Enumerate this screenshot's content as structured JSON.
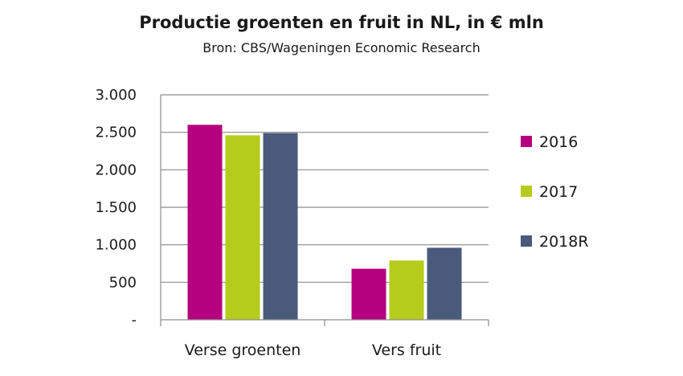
{
  "chart_data": {
    "type": "bar",
    "title": "Productie groenten en fruit in NL, in € mln",
    "subtitle": "Bron: CBS/Wageningen Economic Research",
    "categories": [
      "Verse groenten",
      "Vers fruit"
    ],
    "series": [
      {
        "name": "2016",
        "color": "#b5007f",
        "values": [
          2600,
          680
        ]
      },
      {
        "name": "2017",
        "color": "#b5cc1c",
        "values": [
          2460,
          790
        ]
      },
      {
        "name": "2018R",
        "color": "#4a5a7a",
        "values": [
          2490,
          960
        ]
      }
    ],
    "yticks": [
      "-",
      "500",
      "1.000",
      "1.500",
      "2.000",
      "2.500",
      "3.000"
    ],
    "ylim": [
      0,
      3000
    ],
    "grid": true,
    "legend_position": "right"
  }
}
